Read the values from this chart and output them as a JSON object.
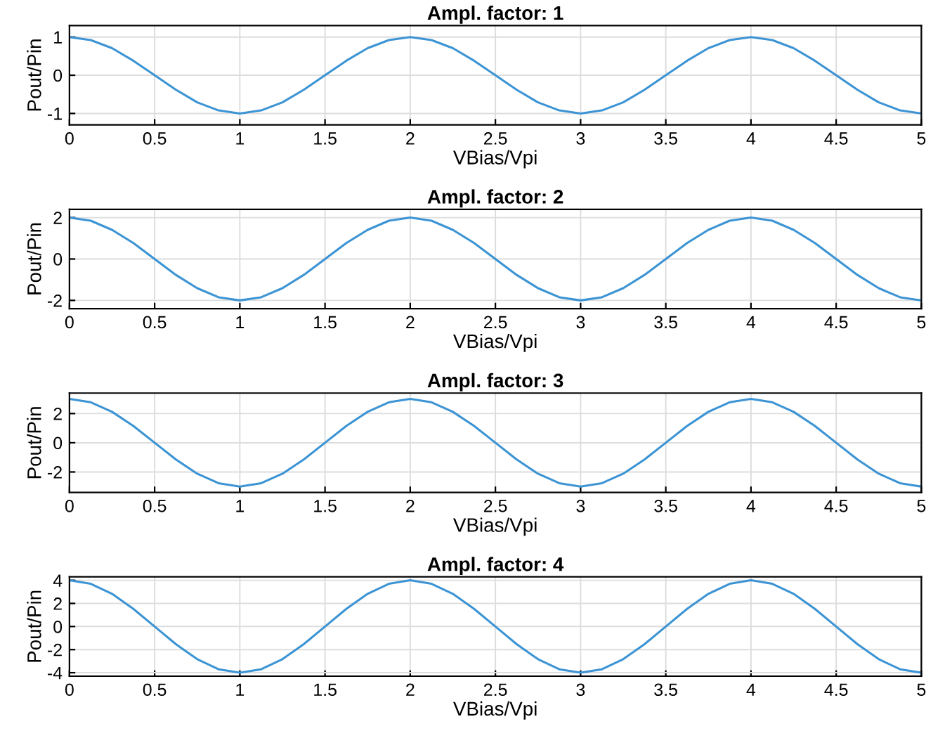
{
  "chart_data": [
    {
      "type": "line",
      "title": "Ampl. factor: 1",
      "xlabel": "VBias/Vpi",
      "ylabel": "Pout/Pin",
      "xlim": [
        0,
        5
      ],
      "ylim": [
        -1.3,
        1.3
      ],
      "xticks": [
        0,
        0.5,
        1,
        1.5,
        2,
        2.5,
        3,
        3.5,
        4,
        4.5,
        5
      ],
      "yticks": [
        -1,
        0,
        1
      ],
      "grid": true,
      "series": [
        {
          "color": "#3c94d4",
          "x": [
            0,
            0.125,
            0.25,
            0.375,
            0.5,
            0.625,
            0.75,
            0.875,
            1,
            1.125,
            1.25,
            1.375,
            1.5,
            1.625,
            1.75,
            1.875,
            2,
            2.125,
            2.25,
            2.375,
            2.5,
            2.625,
            2.75,
            2.875,
            3,
            3.125,
            3.25,
            3.375,
            3.5,
            3.625,
            3.75,
            3.875,
            4,
            4.125,
            4.25,
            4.375,
            4.5,
            4.625,
            4.75,
            4.875,
            5
          ],
          "values": [
            1,
            0.92,
            0.71,
            0.38,
            0,
            -0.38,
            -0.71,
            -0.92,
            -1,
            -0.92,
            -0.71,
            -0.38,
            0,
            0.38,
            0.71,
            0.92,
            1,
            0.92,
            0.71,
            0.38,
            0,
            -0.38,
            -0.71,
            -0.92,
            -1,
            -0.92,
            -0.71,
            -0.38,
            0,
            0.38,
            0.71,
            0.92,
            1,
            0.92,
            0.71,
            0.38,
            0,
            -0.38,
            -0.71,
            -0.92,
            -1
          ]
        }
      ]
    },
    {
      "type": "line",
      "title": "Ampl. factor: 2",
      "xlabel": "VBias/Vpi",
      "ylabel": "Pout/Pin",
      "xlim": [
        0,
        5
      ],
      "ylim": [
        -2.4,
        2.4
      ],
      "xticks": [
        0,
        0.5,
        1,
        1.5,
        2,
        2.5,
        3,
        3.5,
        4,
        4.5,
        5
      ],
      "yticks": [
        -2,
        0,
        2
      ],
      "grid": true,
      "series": [
        {
          "color": "#3c94d4",
          "x": [
            0,
            0.125,
            0.25,
            0.375,
            0.5,
            0.625,
            0.75,
            0.875,
            1,
            1.125,
            1.25,
            1.375,
            1.5,
            1.625,
            1.75,
            1.875,
            2,
            2.125,
            2.25,
            2.375,
            2.5,
            2.625,
            2.75,
            2.875,
            3,
            3.125,
            3.25,
            3.375,
            3.5,
            3.625,
            3.75,
            3.875,
            4,
            4.125,
            4.25,
            4.375,
            4.5,
            4.625,
            4.75,
            4.875,
            5
          ],
          "values": [
            2,
            1.85,
            1.41,
            0.77,
            0,
            -0.77,
            -1.41,
            -1.85,
            -2,
            -1.85,
            -1.41,
            -0.77,
            0,
            0.77,
            1.41,
            1.85,
            2,
            1.85,
            1.41,
            0.77,
            0,
            -0.77,
            -1.41,
            -1.85,
            -2,
            -1.85,
            -1.41,
            -0.77,
            0,
            0.77,
            1.41,
            1.85,
            2,
            1.85,
            1.41,
            0.77,
            0,
            -0.77,
            -1.41,
            -1.85,
            -2
          ]
        }
      ]
    },
    {
      "type": "line",
      "title": "Ampl. factor: 3",
      "xlabel": "VBias/Vpi",
      "ylabel": "Pout/Pin",
      "xlim": [
        0,
        5
      ],
      "ylim": [
        -3.4,
        3.4
      ],
      "xticks": [
        0,
        0.5,
        1,
        1.5,
        2,
        2.5,
        3,
        3.5,
        4,
        4.5,
        5
      ],
      "yticks": [
        -2,
        0,
        2
      ],
      "grid": true,
      "series": [
        {
          "color": "#3c94d4",
          "x": [
            0,
            0.125,
            0.25,
            0.375,
            0.5,
            0.625,
            0.75,
            0.875,
            1,
            1.125,
            1.25,
            1.375,
            1.5,
            1.625,
            1.75,
            1.875,
            2,
            2.125,
            2.25,
            2.375,
            2.5,
            2.625,
            2.75,
            2.875,
            3,
            3.125,
            3.25,
            3.375,
            3.5,
            3.625,
            3.75,
            3.875,
            4,
            4.125,
            4.25,
            4.375,
            4.5,
            4.625,
            4.75,
            4.875,
            5
          ],
          "values": [
            3,
            2.77,
            2.12,
            1.15,
            0,
            -1.15,
            -2.12,
            -2.77,
            -3,
            -2.77,
            -2.12,
            -1.15,
            0,
            1.15,
            2.12,
            2.77,
            3,
            2.77,
            2.12,
            1.15,
            0,
            -1.15,
            -2.12,
            -2.77,
            -3,
            -2.77,
            -2.12,
            -1.15,
            0,
            1.15,
            2.12,
            2.77,
            3,
            2.77,
            2.12,
            1.15,
            0,
            -1.15,
            -2.12,
            -2.77,
            -3
          ]
        }
      ]
    },
    {
      "type": "line",
      "title": "Ampl. factor: 4",
      "xlabel": "VBias/Vpi",
      "ylabel": "Pout/Pin",
      "xlim": [
        0,
        5
      ],
      "ylim": [
        -4.3,
        4.3
      ],
      "xticks": [
        0,
        0.5,
        1,
        1.5,
        2,
        2.5,
        3,
        3.5,
        4,
        4.5,
        5
      ],
      "yticks": [
        -4,
        -2,
        0,
        2,
        4
      ],
      "grid": true,
      "series": [
        {
          "color": "#3c94d4",
          "x": [
            0,
            0.125,
            0.25,
            0.375,
            0.5,
            0.625,
            0.75,
            0.875,
            1,
            1.125,
            1.25,
            1.375,
            1.5,
            1.625,
            1.75,
            1.875,
            2,
            2.125,
            2.25,
            2.375,
            2.5,
            2.625,
            2.75,
            2.875,
            3,
            3.125,
            3.25,
            3.375,
            3.5,
            3.625,
            3.75,
            3.875,
            4,
            4.125,
            4.25,
            4.375,
            4.5,
            4.625,
            4.75,
            4.875,
            5
          ],
          "values": [
            4,
            3.7,
            2.83,
            1.53,
            0,
            -1.53,
            -2.83,
            -3.7,
            -4,
            -3.7,
            -2.83,
            -1.53,
            0,
            1.53,
            2.83,
            3.7,
            4,
            3.7,
            2.83,
            1.53,
            0,
            -1.53,
            -2.83,
            -3.7,
            -4,
            -3.7,
            -2.83,
            -1.53,
            0,
            1.53,
            2.83,
            3.7,
            4,
            3.7,
            2.83,
            1.53,
            0,
            -1.53,
            -2.83,
            -3.7,
            -4
          ]
        }
      ]
    }
  ]
}
